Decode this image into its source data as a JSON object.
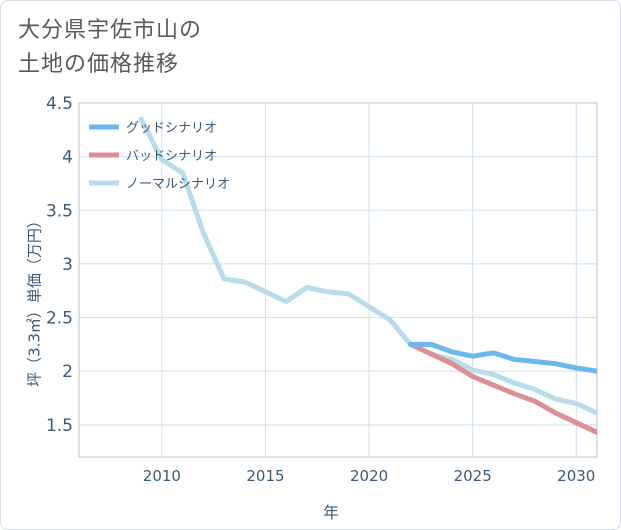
{
  "title": {
    "line1": "大分県宇佐市山の",
    "line2": "土地の価格推移"
  },
  "chart_data": {
    "type": "line",
    "xlabel": "年",
    "ylabel": "坪（3.3㎡）単価（万円）",
    "xlim": [
      2006,
      2031
    ],
    "ylim": [
      1.2,
      4.5
    ],
    "x_ticks": [
      2010,
      2015,
      2020,
      2025,
      2030
    ],
    "y_ticks": [
      1.5,
      2,
      2.5,
      3,
      3.5,
      4,
      4.5
    ],
    "y_tick_labels": [
      "1.5",
      "2",
      "2.5",
      "3",
      "3.5",
      "4",
      "4.5"
    ],
    "grid": true,
    "legend_position": "top-left",
    "series": [
      {
        "name": "グッドシナリオ",
        "color": "#6bb8ee",
        "x": [
          2022,
          2023,
          2024,
          2025,
          2026,
          2027,
          2028,
          2029,
          2030,
          2031
        ],
        "y": [
          2.25,
          2.25,
          2.18,
          2.14,
          2.17,
          2.11,
          2.09,
          2.07,
          2.03,
          2.0
        ]
      },
      {
        "name": "バッドシナリオ",
        "color": "#e08e96",
        "x": [
          2022,
          2023,
          2024,
          2025,
          2026,
          2027,
          2028,
          2029,
          2030,
          2031
        ],
        "y": [
          2.25,
          2.16,
          2.07,
          1.95,
          1.87,
          1.79,
          1.72,
          1.61,
          1.52,
          1.43
        ]
      },
      {
        "name": "ノーマルシナリオ",
        "color": "#b7dcec",
        "x": [
          2009,
          2010,
          2011,
          2012,
          2013,
          2014,
          2015,
          2016,
          2017,
          2018,
          2019,
          2020,
          2021,
          2022,
          2023,
          2024,
          2025,
          2026,
          2027,
          2028,
          2029,
          2030,
          2031
        ],
        "y": [
          4.35,
          3.97,
          3.85,
          3.29,
          2.86,
          2.83,
          2.74,
          2.65,
          2.78,
          2.74,
          2.72,
          2.6,
          2.48,
          2.25,
          2.16,
          2.11,
          2.01,
          1.97,
          1.89,
          1.83,
          1.74,
          1.7,
          1.61
        ]
      }
    ]
  }
}
